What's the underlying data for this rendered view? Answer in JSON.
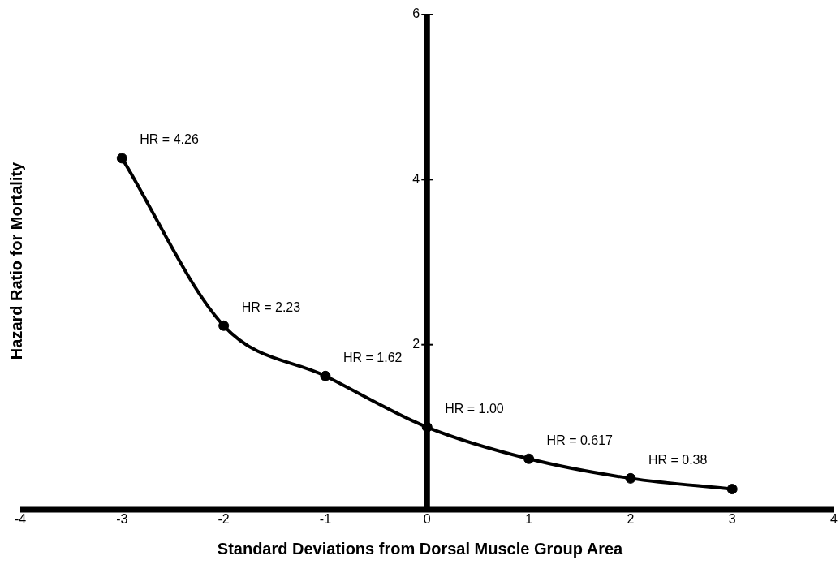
{
  "chart_data": {
    "type": "line",
    "xlabel": "Standard Deviations from Dorsal Muscle Group Area",
    "ylabel": "Hazard Ratio for Mortality",
    "x": [
      -3,
      -2,
      -1,
      0,
      1,
      2,
      3
    ],
    "series": [
      {
        "color": "#000000",
        "values": [
          4.26,
          2.23,
          1.62,
          1.0,
          0.617,
          0.38,
          0.25
        ],
        "value_labels": [
          "HR = 4.26",
          "HR = 2.23",
          "HR = 1.62",
          "HR = 1.00",
          "HR = 0.617",
          "HR = 0.38",
          null
        ]
      }
    ],
    "xlim": [
      -4,
      4
    ],
    "xticks": [
      -4,
      -3,
      -2,
      -1,
      0,
      1,
      2,
      3,
      4
    ],
    "ylim": [
      0,
      6
    ],
    "yticks": [
      {
        "value": 0,
        "label": null
      },
      2,
      4,
      6
    ],
    "grid": false,
    "legend": false,
    "marker": "circle",
    "line_style": "solid"
  }
}
